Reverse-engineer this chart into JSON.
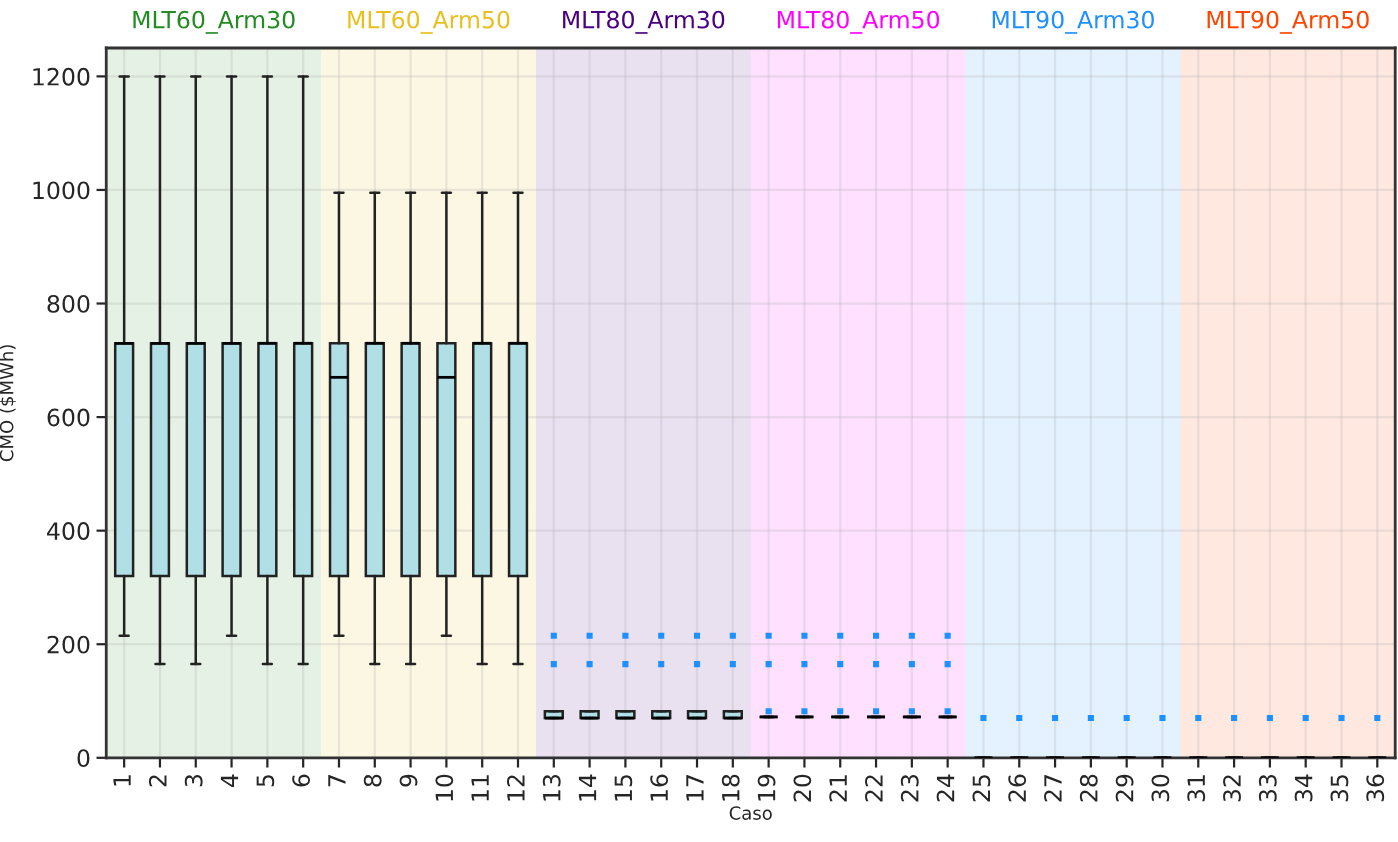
{
  "chart_data": {
    "type": "box",
    "xlabel": "Caso",
    "ylabel": "CMO ($MWh)",
    "categories": [
      "1",
      "2",
      "3",
      "4",
      "5",
      "6",
      "7",
      "8",
      "9",
      "10",
      "11",
      "12",
      "13",
      "14",
      "15",
      "16",
      "17",
      "18",
      "19",
      "20",
      "21",
      "22",
      "23",
      "24",
      "25",
      "26",
      "27",
      "28",
      "29",
      "30",
      "31",
      "32",
      "33",
      "34",
      "35",
      "36"
    ],
    "series": [
      {
        "colors": [
          "#b0e0e6",
          "#b0e0e6",
          "#b0e0e6",
          "#b0e0e6",
          "#b0e0e6",
          "#b0e0e6",
          "#b0e0e6",
          "#b0e0e6",
          "#b0e0e6",
          "#b0e0e6",
          "#b0e0e6",
          "#b0e0e6",
          "#b0e0e6",
          "#b0e0e6",
          "#b0e0e6",
          "#b0e0e6",
          "#b0e0e6",
          "#b0e0e6",
          "#222222",
          "#222222",
          "#222222",
          "#222222",
          "#222222",
          "#222222",
          "#222222",
          "#222222",
          "#222222",
          "#222222",
          "#222222",
          "#222222",
          "#222222",
          "#222222",
          "#222222",
          "#222222",
          "#222222",
          "#222222"
        ],
        "boxes": [
          {
            "low": 215,
            "q1": 320,
            "median": 730,
            "q3": 730,
            "high": 1200
          },
          {
            "low": 165,
            "q1": 320,
            "median": 730,
            "q3": 730,
            "high": 1200
          },
          {
            "low": 165,
            "q1": 320,
            "median": 730,
            "q3": 730,
            "high": 1200
          },
          {
            "low": 215,
            "q1": 320,
            "median": 730,
            "q3": 730,
            "high": 1200
          },
          {
            "low": 165,
            "q1": 320,
            "median": 730,
            "q3": 730,
            "high": 1200
          },
          {
            "low": 165,
            "q1": 320,
            "median": 730,
            "q3": 730,
            "high": 1200
          },
          {
            "low": 215,
            "q1": 320,
            "median": 670,
            "q3": 730,
            "high": 995
          },
          {
            "low": 165,
            "q1": 320,
            "median": 730,
            "q3": 730,
            "high": 995
          },
          {
            "low": 165,
            "q1": 320,
            "median": 730,
            "q3": 730,
            "high": 995
          },
          {
            "low": 215,
            "q1": 320,
            "median": 670,
            "q3": 730,
            "high": 995
          },
          {
            "low": 165,
            "q1": 320,
            "median": 730,
            "q3": 730,
            "high": 995
          },
          {
            "low": 165,
            "q1": 320,
            "median": 730,
            "q3": 730,
            "high": 995
          },
          {
            "low": 70,
            "q1": 70,
            "median": 70,
            "q3": 82,
            "high": 82,
            "outliers": [
              165,
              215
            ]
          },
          {
            "low": 70,
            "q1": 70,
            "median": 70,
            "q3": 82,
            "high": 82,
            "outliers": [
              165,
              215
            ]
          },
          {
            "low": 70,
            "q1": 70,
            "median": 70,
            "q3": 82,
            "high": 82,
            "outliers": [
              165,
              215
            ]
          },
          {
            "low": 70,
            "q1": 70,
            "median": 70,
            "q3": 82,
            "high": 82,
            "outliers": [
              165,
              215
            ]
          },
          {
            "low": 70,
            "q1": 70,
            "median": 70,
            "q3": 82,
            "high": 82,
            "outliers": [
              165,
              215
            ]
          },
          {
            "low": 70,
            "q1": 70,
            "median": 70,
            "q3": 82,
            "high": 82,
            "outliers": [
              165,
              215
            ]
          },
          {
            "low": 72,
            "q1": 72,
            "median": 72,
            "q3": 72,
            "high": 72,
            "outliers": [
              82,
              165,
              215
            ]
          },
          {
            "low": 72,
            "q1": 72,
            "median": 72,
            "q3": 72,
            "high": 72,
            "outliers": [
              82,
              165,
              215
            ]
          },
          {
            "low": 72,
            "q1": 72,
            "median": 72,
            "q3": 72,
            "high": 72,
            "outliers": [
              82,
              165,
              215
            ]
          },
          {
            "low": 72,
            "q1": 72,
            "median": 72,
            "q3": 72,
            "high": 72,
            "outliers": [
              82,
              165,
              215
            ]
          },
          {
            "low": 72,
            "q1": 72,
            "median": 72,
            "q3": 72,
            "high": 72,
            "outliers": [
              82,
              165,
              215
            ]
          },
          {
            "low": 72,
            "q1": 72,
            "median": 72,
            "q3": 72,
            "high": 72,
            "outliers": [
              82,
              165,
              215
            ]
          },
          {
            "low": 0,
            "q1": 0,
            "median": 0,
            "q3": 0,
            "high": 0,
            "outliers": [
              70
            ]
          },
          {
            "low": 0,
            "q1": 0,
            "median": 0,
            "q3": 0,
            "high": 0,
            "outliers": [
              70
            ]
          },
          {
            "low": 0,
            "q1": 0,
            "median": 0,
            "q3": 0,
            "high": 0,
            "outliers": [
              70
            ]
          },
          {
            "low": 0,
            "q1": 0,
            "median": 0,
            "q3": 0,
            "high": 0,
            "outliers": [
              70
            ]
          },
          {
            "low": 0,
            "q1": 0,
            "median": 0,
            "q3": 0,
            "high": 0,
            "outliers": [
              70
            ]
          },
          {
            "low": 0,
            "q1": 0,
            "median": 0,
            "q3": 0,
            "high": 0,
            "outliers": [
              70
            ]
          },
          {
            "low": 0,
            "q1": 0,
            "median": 0,
            "q3": 0,
            "high": 0,
            "outliers": [
              70
            ]
          },
          {
            "low": 0,
            "q1": 0,
            "median": 0,
            "q3": 0,
            "high": 0,
            "outliers": [
              70
            ]
          },
          {
            "low": 0,
            "q1": 0,
            "median": 0,
            "q3": 0,
            "high": 0,
            "outliers": [
              70
            ]
          },
          {
            "low": 0,
            "q1": 0,
            "median": 0,
            "q3": 0,
            "high": 0,
            "outliers": [
              70
            ]
          },
          {
            "low": 0,
            "q1": 0,
            "median": 0,
            "q3": 0,
            "high": 0,
            "outliers": [
              70
            ]
          },
          {
            "low": 0,
            "q1": 0,
            "median": 0,
            "q3": 0,
            "high": 0,
            "outliers": [
              70
            ]
          }
        ]
      }
    ],
    "ylim": [
      0,
      1250
    ],
    "yticks": [
      0,
      200,
      400,
      600,
      800,
      1000,
      1200
    ],
    "grid": true,
    "bands": [
      {
        "axis": "x",
        "from": "1",
        "to": "6",
        "label": "MLT60_Arm30",
        "color": "#228b22"
      },
      {
        "axis": "x",
        "from": "7",
        "to": "12",
        "label": "MLT60_Arm50",
        "color": "#e8bf1c"
      },
      {
        "axis": "x",
        "from": "13",
        "to": "18",
        "label": "MLT80_Arm30",
        "color": "#4b0082"
      },
      {
        "axis": "x",
        "from": "19",
        "to": "24",
        "label": "MLT80_Arm50",
        "color": "#ff00ff"
      },
      {
        "axis": "x",
        "from": "25",
        "to": "30",
        "label": "MLT90_Arm30",
        "color": "#1e90ff"
      },
      {
        "axis": "x",
        "from": "31",
        "to": "36",
        "label": "MLT90_Arm50",
        "color": "#ff4500"
      }
    ]
  }
}
